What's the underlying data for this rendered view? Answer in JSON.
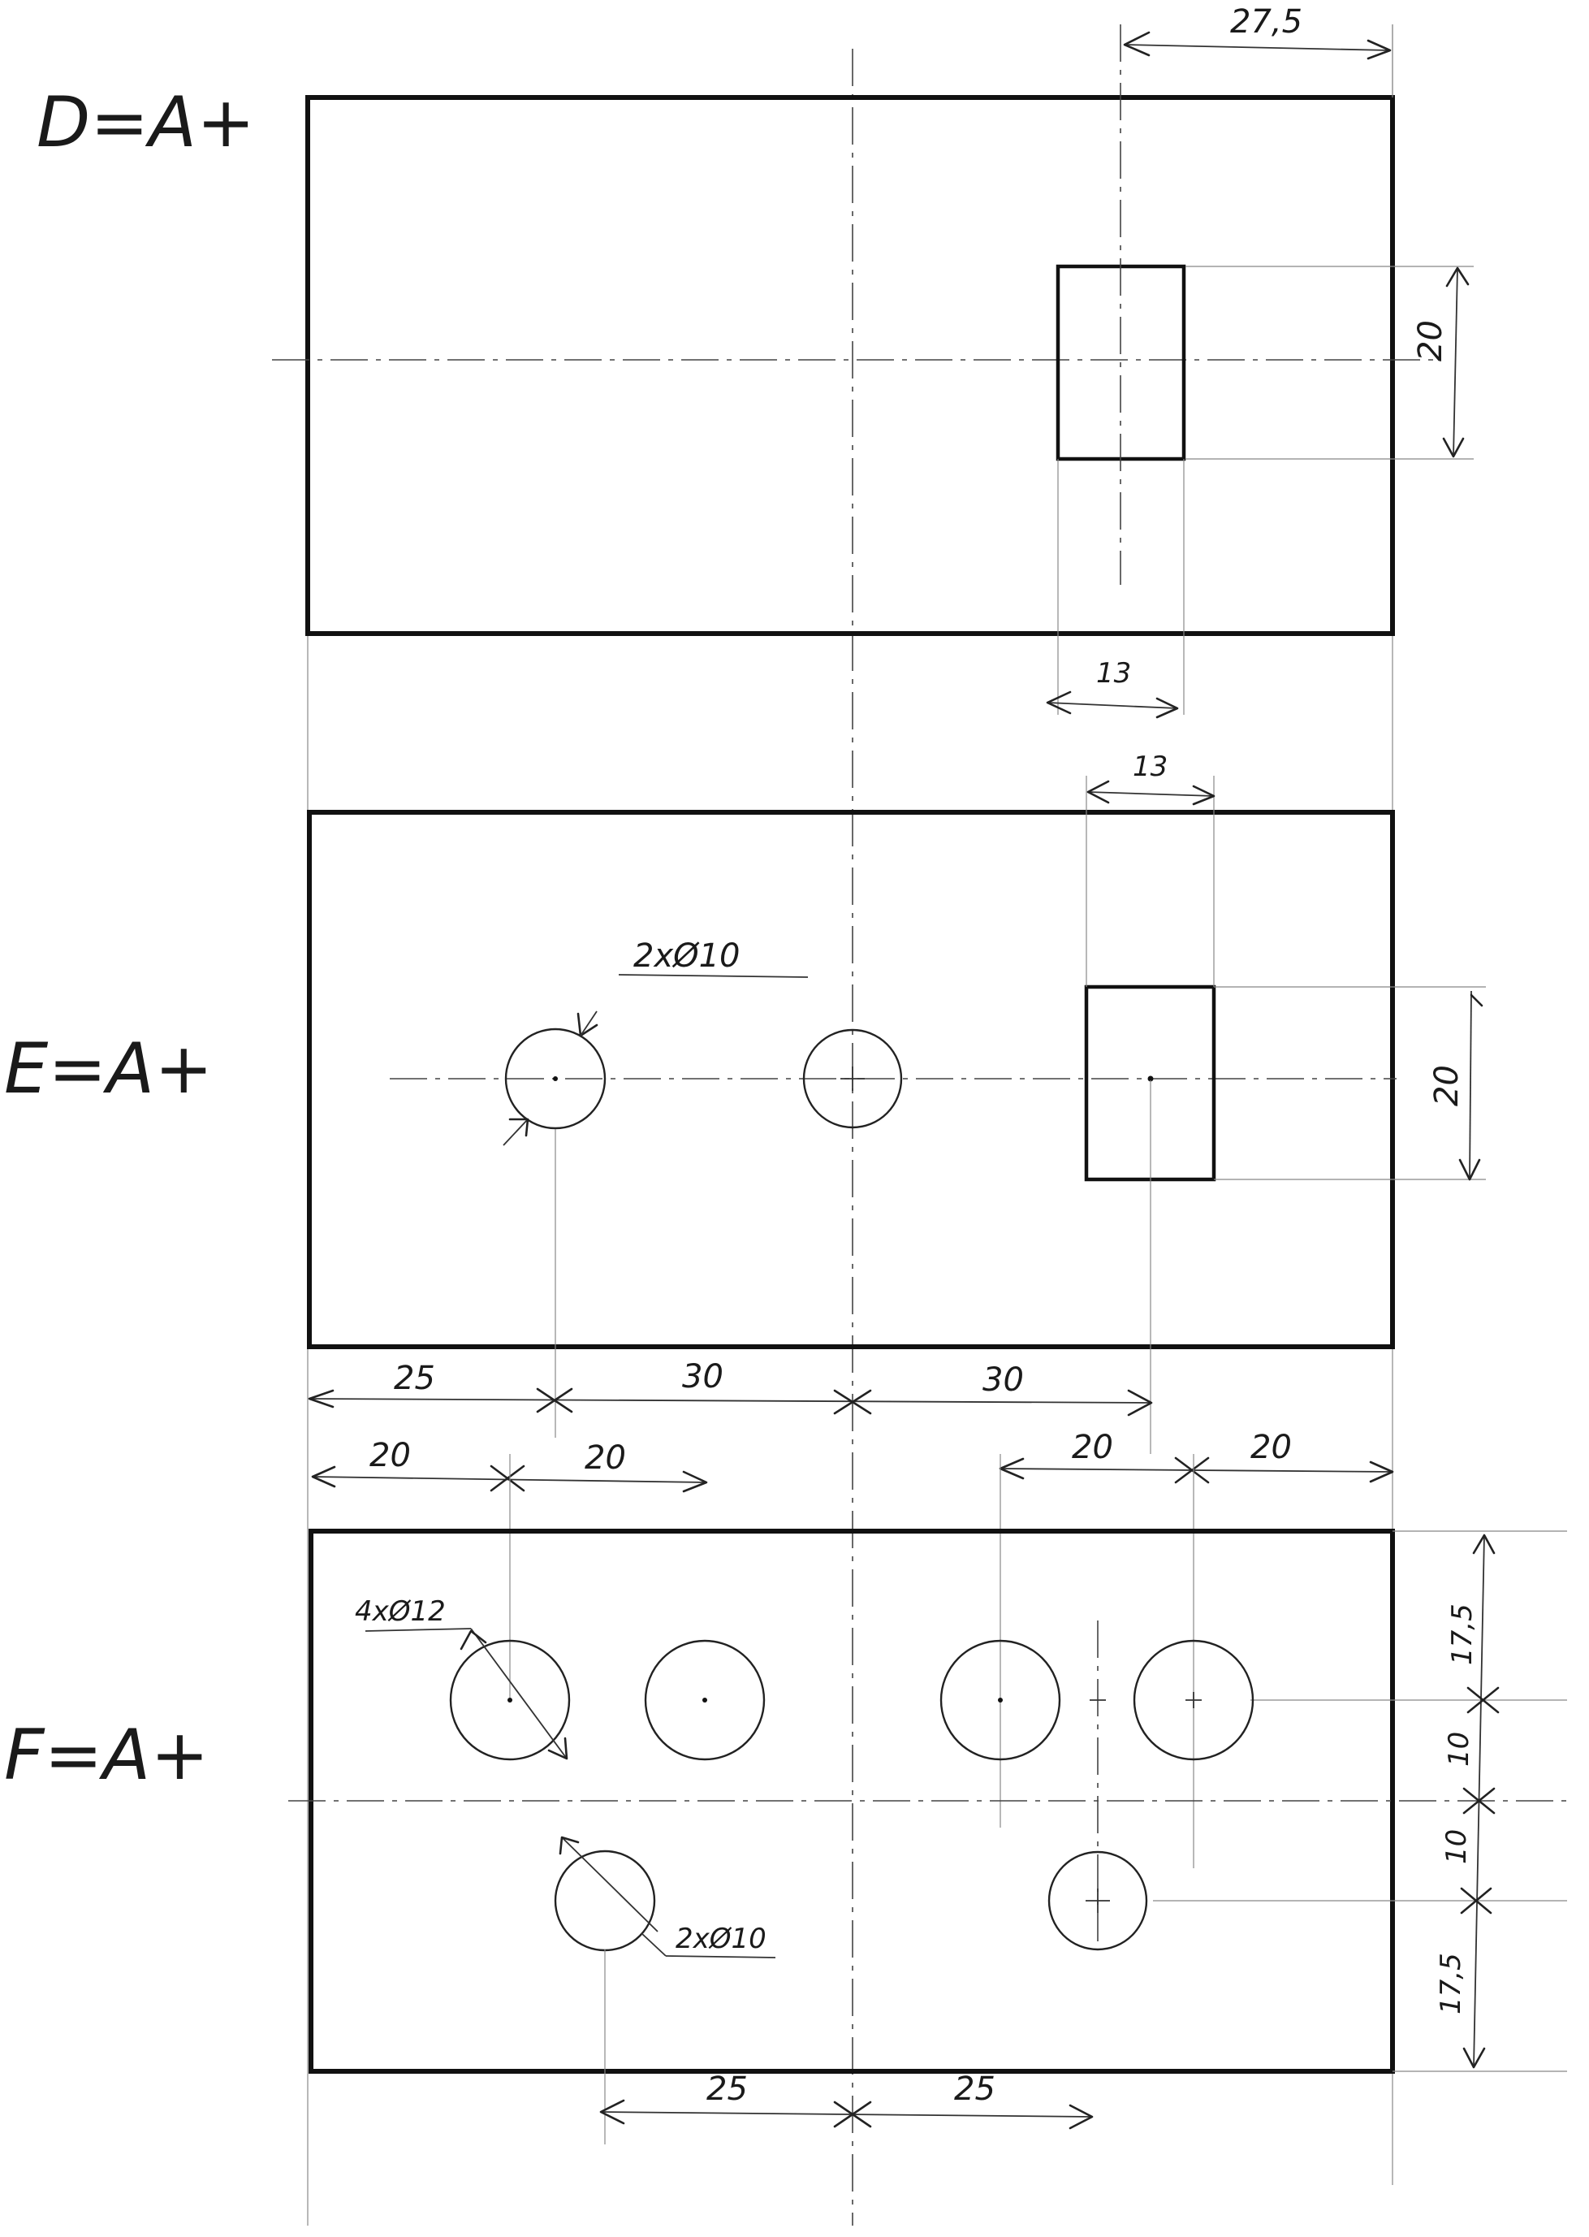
{
  "views": {
    "d": {
      "label": "D=A+",
      "dim_top": "27,5",
      "dim_right": "20",
      "dim_below": "13"
    },
    "e": {
      "label": "E=A+",
      "dim_top": "13",
      "hole_note": "2xØ10",
      "dim_right": "20",
      "dim_bottom_1": "25",
      "dim_bottom_2": "30",
      "dim_bottom_3": "30"
    },
    "f": {
      "label": "F=A+",
      "dim_top_1": "20",
      "dim_top_2": "20",
      "dim_top_3": "20",
      "dim_top_4": "20",
      "hole_note_large": "4xØ12",
      "hole_note_small": "2xØ10",
      "dim_right_1": "17,5",
      "dim_right_2": "10",
      "dim_right_3": "10",
      "dim_right_4": "17,5",
      "dim_bottom_1": "25",
      "dim_bottom_2": "25"
    }
  }
}
